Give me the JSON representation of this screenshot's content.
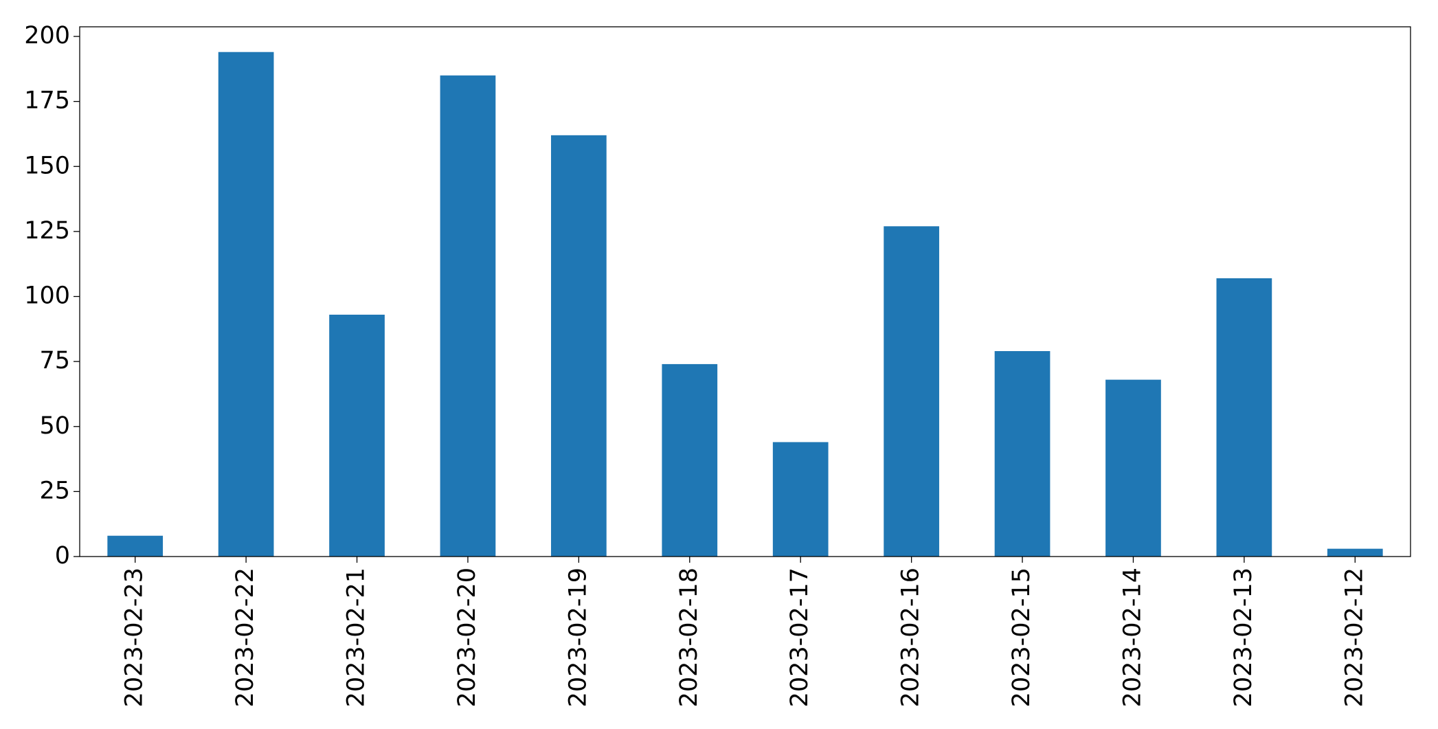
{
  "chart_data": {
    "type": "bar",
    "categories": [
      "2023-02-23",
      "2023-02-22",
      "2023-02-21",
      "2023-02-20",
      "2023-02-19",
      "2023-02-18",
      "2023-02-17",
      "2023-02-16",
      "2023-02-15",
      "2023-02-14",
      "2023-02-13",
      "2023-02-12"
    ],
    "values": [
      8,
      194,
      93,
      185,
      162,
      74,
      44,
      127,
      79,
      68,
      107,
      3
    ],
    "color": "#1f77b4",
    "ylim": [
      0,
      203.7
    ],
    "yticks": [
      0,
      25,
      50,
      75,
      100,
      125,
      150,
      175,
      200
    ],
    "grid": false
  }
}
